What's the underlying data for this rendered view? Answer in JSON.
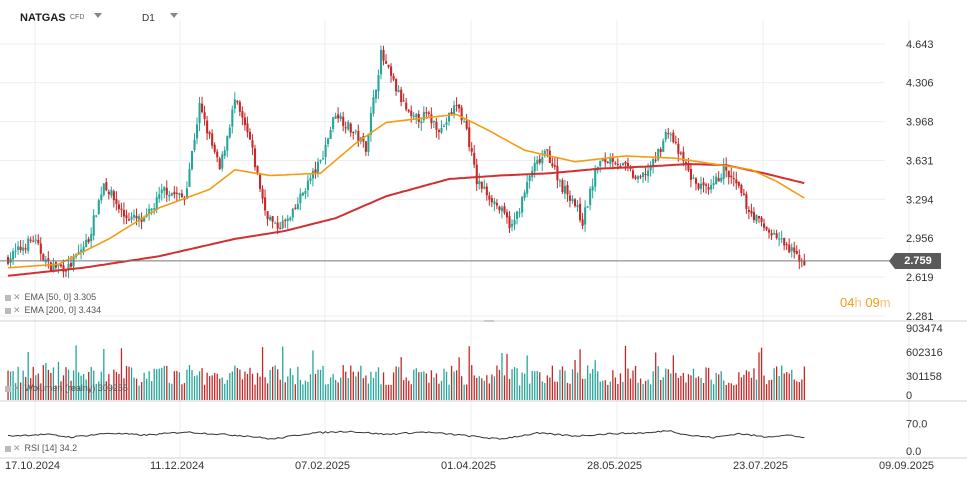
{
  "header": {
    "symbol": "NATGAS",
    "instrument_type": "CFD",
    "timeframe": "D1"
  },
  "price_axis_labels": [
    "4.643",
    "4.306",
    "3.968",
    "3.631",
    "3.294",
    "2.956",
    "2.619",
    "2.281"
  ],
  "current_price": "2.759",
  "countdown": {
    "hours": "04",
    "h_unit": "h",
    "minutes": "09",
    "m_unit": "m"
  },
  "legends": {
    "ema50": "EMA [50, 0] 3.305",
    "ema200": "EMA [200, 0] 3.434",
    "volume": "Wolumen (realny) 309255",
    "rsi": "RSI [14] 34.2"
  },
  "volume_axis_labels": [
    "903474",
    "602316",
    "301158",
    "0"
  ],
  "rsi_axis_labels": [
    "70.0",
    "0.0"
  ],
  "date_labels": [
    "17.10.2024",
    "11.12.2024",
    "07.02.2025",
    "01.04.2025",
    "28.05.2025",
    "23.07.2025",
    "09.09.2025"
  ],
  "colors": {
    "up": "#26a69a",
    "down": "#c62828",
    "ema50": "#f39c12",
    "ema200": "#d32f2f",
    "price_line": "#777777",
    "rsi": "#333333"
  },
  "chart_data": {
    "type": "candlestick",
    "y_range": [
      2.281,
      4.85
    ],
    "price_anchors": [
      [
        0,
        2.78
      ],
      [
        10,
        2.95
      ],
      [
        16,
        2.72
      ],
      [
        24,
        2.7
      ],
      [
        32,
        2.95
      ],
      [
        38,
        3.44
      ],
      [
        46,
        3.15
      ],
      [
        54,
        3.1
      ],
      [
        62,
        3.38
      ],
      [
        70,
        3.3
      ],
      [
        76,
        4.1
      ],
      [
        84,
        3.55
      ],
      [
        90,
        4.15
      ],
      [
        96,
        3.8
      ],
      [
        102,
        3.2
      ],
      [
        106,
        3.05
      ],
      [
        112,
        3.12
      ],
      [
        118,
        3.4
      ],
      [
        124,
        3.62
      ],
      [
        130,
        4.05
      ],
      [
        136,
        3.9
      ],
      [
        142,
        3.75
      ],
      [
        148,
        4.55
      ],
      [
        154,
        4.25
      ],
      [
        160,
        3.98
      ],
      [
        166,
        4.02
      ],
      [
        172,
        3.9
      ],
      [
        178,
        4.12
      ],
      [
        182,
        3.9
      ],
      [
        186,
        3.45
      ],
      [
        192,
        3.3
      ],
      [
        196,
        3.18
      ],
      [
        200,
        3.05
      ],
      [
        204,
        3.28
      ],
      [
        208,
        3.55
      ],
      [
        214,
        3.7
      ],
      [
        220,
        3.4
      ],
      [
        224,
        3.3
      ],
      [
        228,
        3.1
      ],
      [
        234,
        3.6
      ],
      [
        240,
        3.65
      ],
      [
        246,
        3.55
      ],
      [
        250,
        3.45
      ],
      [
        256,
        3.6
      ],
      [
        262,
        3.9
      ],
      [
        266,
        3.7
      ],
      [
        272,
        3.45
      ],
      [
        278,
        3.35
      ],
      [
        284,
        3.55
      ],
      [
        290,
        3.38
      ],
      [
        294,
        3.2
      ],
      [
        300,
        3.05
      ],
      [
        306,
        2.95
      ],
      [
        310,
        2.85
      ],
      [
        316,
        2.75
      ]
    ],
    "ema50_anchors": [
      [
        0,
        2.7
      ],
      [
        20,
        2.73
      ],
      [
        40,
        2.95
      ],
      [
        60,
        3.22
      ],
      [
        80,
        3.38
      ],
      [
        90,
        3.55
      ],
      [
        104,
        3.5
      ],
      [
        124,
        3.52
      ],
      [
        138,
        3.78
      ],
      [
        150,
        3.96
      ],
      [
        165,
        4.0
      ],
      [
        178,
        4.03
      ],
      [
        190,
        3.9
      ],
      [
        205,
        3.72
      ],
      [
        225,
        3.62
      ],
      [
        245,
        3.67
      ],
      [
        265,
        3.65
      ],
      [
        280,
        3.6
      ],
      [
        295,
        3.55
      ],
      [
        305,
        3.45
      ],
      [
        316,
        3.305
      ]
    ],
    "ema200_anchors": [
      [
        0,
        2.63
      ],
      [
        30,
        2.7
      ],
      [
        60,
        2.8
      ],
      [
        90,
        2.95
      ],
      [
        110,
        3.02
      ],
      [
        130,
        3.13
      ],
      [
        150,
        3.32
      ],
      [
        175,
        3.47
      ],
      [
        195,
        3.5
      ],
      [
        215,
        3.52
      ],
      [
        235,
        3.56
      ],
      [
        255,
        3.58
      ],
      [
        270,
        3.6
      ],
      [
        285,
        3.59
      ],
      [
        300,
        3.52
      ],
      [
        316,
        3.434
      ]
    ],
    "volume_range": [
      0,
      903474
    ],
    "rsi_range": [
      0,
      100
    ],
    "rsi_anchors": [
      [
        0,
        38
      ],
      [
        15,
        42
      ],
      [
        25,
        35
      ],
      [
        40,
        45
      ],
      [
        55,
        40
      ],
      [
        70,
        48
      ],
      [
        85,
        42
      ],
      [
        95,
        38
      ],
      [
        105,
        30
      ],
      [
        120,
        45
      ],
      [
        135,
        50
      ],
      [
        150,
        42
      ],
      [
        165,
        48
      ],
      [
        180,
        40
      ],
      [
        195,
        30
      ],
      [
        210,
        45
      ],
      [
        225,
        38
      ],
      [
        240,
        44
      ],
      [
        255,
        46
      ],
      [
        262,
        52
      ],
      [
        270,
        40
      ],
      [
        280,
        34
      ],
      [
        290,
        44
      ],
      [
        300,
        36
      ],
      [
        310,
        40
      ],
      [
        316,
        34.2
      ]
    ],
    "num_bars": 317
  }
}
